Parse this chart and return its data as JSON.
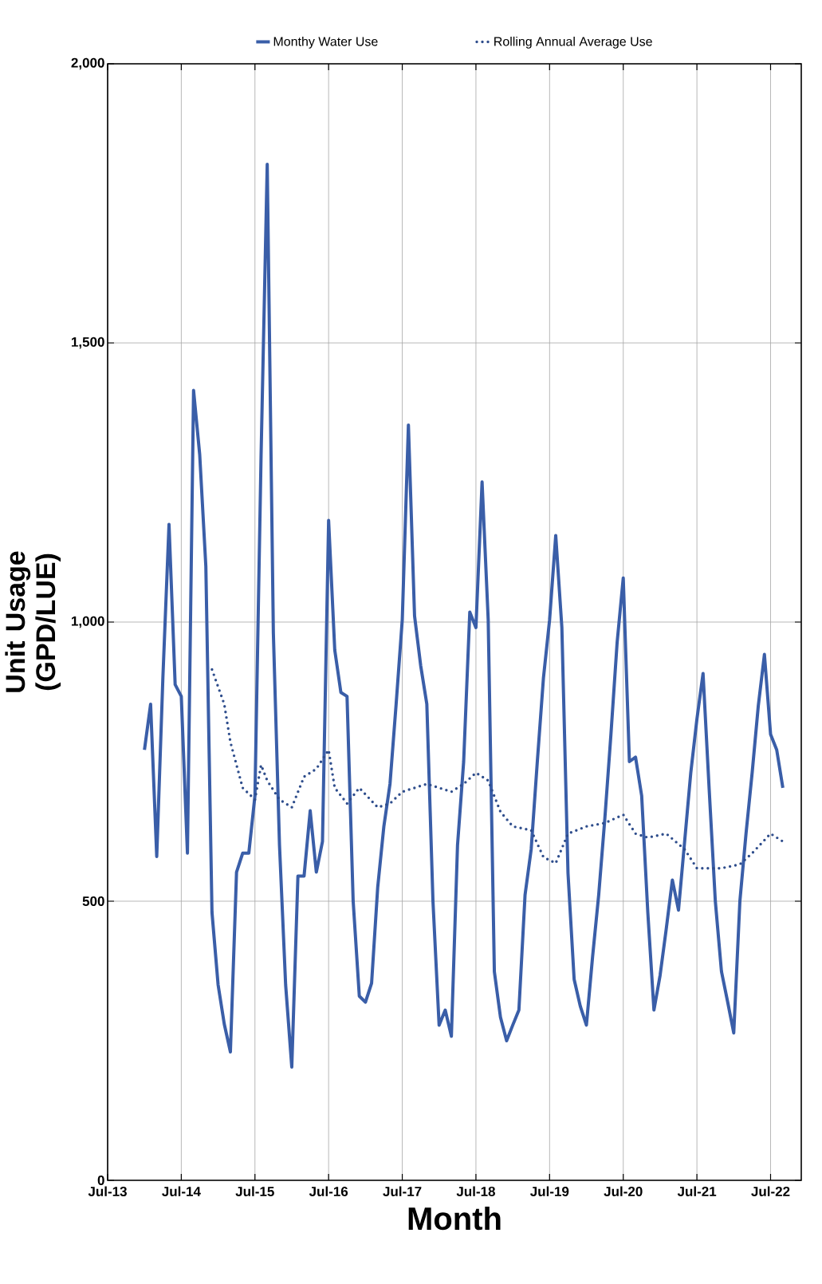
{
  "chart_data": {
    "type": "line",
    "xlabel": "Month",
    "ylabel": "Unit Usage (GPD/LUE)",
    "xlim": [
      "2013-07",
      "2022-12"
    ],
    "ylim": [
      0,
      2000
    ],
    "xticks": [
      {
        "value": "2013-07",
        "label": "Jul-13"
      },
      {
        "value": "2014-07",
        "label": "Jul-14"
      },
      {
        "value": "2015-07",
        "label": "Jul-15"
      },
      {
        "value": "2016-07",
        "label": "Jul-16"
      },
      {
        "value": "2017-07",
        "label": "Jul-17"
      },
      {
        "value": "2018-07",
        "label": "Jul-18"
      },
      {
        "value": "2019-07",
        "label": "Jul-19"
      },
      {
        "value": "2020-07",
        "label": "Jul-20"
      },
      {
        "value": "2021-07",
        "label": "Jul-21"
      },
      {
        "value": "2022-07",
        "label": "Jul-22"
      }
    ],
    "yticks": [
      0,
      500,
      {
        "value": 1000,
        "label": "1,000"
      },
      {
        "value": 1500,
        "label": "1,500"
      },
      {
        "value": 2000,
        "label": "2,000"
      }
    ],
    "grid": true,
    "legend": "top",
    "series": [
      {
        "name": "Monthy Water Use",
        "color": "#3a5ea8",
        "line_style": "solid",
        "x": [
          "2014-01",
          "2014-02",
          "2014-03",
          "2014-04",
          "2014-05",
          "2014-06",
          "2014-07",
          "2014-08",
          "2014-09",
          "2014-10",
          "2014-11",
          "2014-12",
          "2015-01",
          "2015-02",
          "2015-03",
          "2015-04",
          "2015-05",
          "2015-06",
          "2015-07",
          "2015-08",
          "2015-09",
          "2015-10",
          "2015-11",
          "2015-12",
          "2016-01",
          "2016-02",
          "2016-03",
          "2016-04",
          "2016-05",
          "2016-06",
          "2016-07",
          "2016-08",
          "2016-09",
          "2016-10",
          "2016-11",
          "2016-12",
          "2017-01",
          "2017-02",
          "2017-03",
          "2017-04",
          "2017-05",
          "2017-06",
          "2017-07",
          "2017-08",
          "2017-09",
          "2017-10",
          "2017-11",
          "2017-12",
          "2018-01",
          "2018-02",
          "2018-03",
          "2018-04",
          "2018-05",
          "2018-06",
          "2018-07",
          "2018-08",
          "2018-09",
          "2018-10",
          "2018-11",
          "2018-12",
          "2019-01",
          "2019-02",
          "2019-03",
          "2019-04",
          "2019-05",
          "2019-06",
          "2019-07",
          "2019-08",
          "2019-09",
          "2019-10",
          "2019-11",
          "2019-12",
          "2020-01",
          "2020-02",
          "2020-03",
          "2020-04",
          "2020-05",
          "2020-06",
          "2020-07",
          "2020-08",
          "2020-09",
          "2020-10",
          "2020-11",
          "2020-12",
          "2021-01",
          "2021-02",
          "2021-03",
          "2021-04",
          "2021-05",
          "2021-06",
          "2021-07",
          "2021-08",
          "2021-09",
          "2021-10",
          "2021-11",
          "2021-12",
          "2022-01",
          "2022-02",
          "2022-03",
          "2022-04",
          "2022-05",
          "2022-06",
          "2022-07",
          "2022-08",
          "2022-09"
        ],
        "values": [
          771,
          853,
          580,
          900,
          1175,
          888,
          867,
          586,
          1415,
          1300,
          1100,
          480,
          350,
          280,
          230,
          552,
          586,
          586,
          689,
          1300,
          1820,
          980,
          600,
          350,
          203,
          545,
          545,
          662,
          552,
          607,
          1182,
          950,
          874,
          867,
          500,
          330,
          319,
          353,
          525,
          634,
          710,
          853,
          1004,
          1353,
          1011,
          922,
          853,
          500,
          278,
          305,
          258,
          600,
          750,
          1018,
          990,
          1251,
          1004,
          374,
          292,
          250,
          278,
          305,
          511,
          593,
          750,
          900,
          1004,
          1155,
          990,
          550,
          360,
          312,
          278,
          400,
          511,
          648,
          800,
          963,
          1079,
          750,
          758,
          689,
          480,
          305,
          367,
          450,
          538,
          484,
          607,
          730,
          826,
          908,
          700,
          500,
          374,
          320,
          264,
          500,
          621,
          730,
          850,
          942,
          799,
          771,
          703
        ]
      },
      {
        "name": "Rolling Annual Average Use",
        "color": "#2e4d8c",
        "line_style": "dotted",
        "x": [
          "2014-12",
          "2015-02",
          "2015-03",
          "2015-05",
          "2015-07",
          "2015-08",
          "2015-09",
          "2015-11",
          "2016-01",
          "2016-03",
          "2016-05",
          "2016-07",
          "2016-08",
          "2016-10",
          "2016-12",
          "2017-03",
          "2017-05",
          "2017-07",
          "2017-11",
          "2018-03",
          "2018-05",
          "2018-07",
          "2018-09",
          "2018-11",
          "2019-01",
          "2019-04",
          "2019-06",
          "2019-08",
          "2019-10",
          "2020-01",
          "2020-04",
          "2020-07",
          "2020-09",
          "2020-11",
          "2021-02",
          "2021-05",
          "2021-07",
          "2021-11",
          "2022-02",
          "2022-04",
          "2022-07",
          "2022-09"
        ],
        "values": [
          915,
          853,
          785,
          703,
          682,
          744,
          716,
          682,
          668,
          723,
          737,
          771,
          703,
          675,
          703,
          668,
          675,
          696,
          710,
          696,
          710,
          730,
          716,
          660,
          634,
          627,
          579,
          568,
          621,
          634,
          640,
          655,
          621,
          614,
          621,
          593,
          559,
          559,
          566,
          586,
          621,
          607
        ]
      }
    ]
  }
}
